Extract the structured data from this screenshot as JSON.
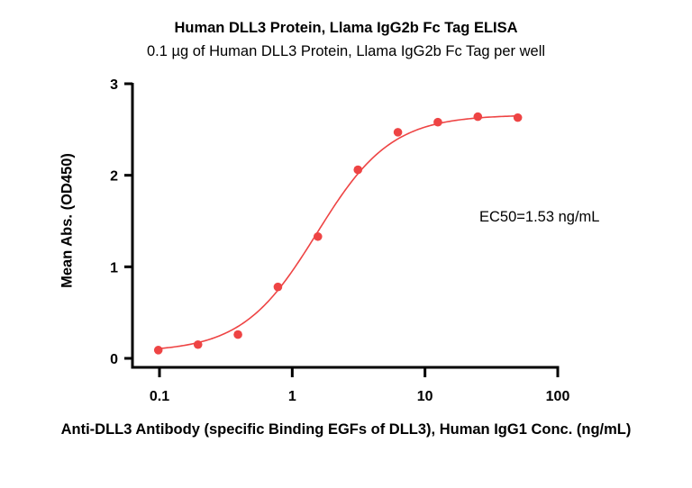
{
  "chart_data": {
    "type": "scatter",
    "title": "Human DLL3 Protein, Llama IgG2b Fc Tag ELISA",
    "subtitle": "0.1 µg of Human DLL3 Protein, Llama IgG2b Fc Tag per well",
    "xlabel": "Anti-DLL3 Antibody (specific Binding EGFs of DLL3), Human IgG1 Conc. (ng/mL)",
    "ylabel": "Mean Abs. (OD450)",
    "xscale": "log",
    "xlim": [
      0.1,
      100
    ],
    "ylim": [
      0,
      3
    ],
    "xticks": [
      "0.1",
      "1",
      "10",
      "100"
    ],
    "yticks": [
      "0",
      "1",
      "2",
      "3"
    ],
    "grid": false,
    "legend": null,
    "annotations": [
      "EC50=1.53 ng/mL"
    ],
    "series": [
      {
        "name": "Anti-DLL3 Antibody, Human IgG1",
        "color": "#ee4444",
        "fit": "4PL sigmoidal curve",
        "x": [
          0.098,
          0.195,
          0.39,
          0.78,
          1.56,
          3.125,
          6.25,
          12.5,
          25,
          50
        ],
        "y": [
          0.09,
          0.15,
          0.26,
          0.78,
          1.33,
          2.06,
          2.47,
          2.58,
          2.64,
          2.63
        ]
      }
    ],
    "fit_params": {
      "bottom": 0.07,
      "top": 2.66,
      "ec50": 1.53,
      "hill": 1.55
    }
  },
  "labels": {
    "title": "Human DLL3 Protein, Llama IgG2b Fc Tag ELISA",
    "subtitle": "0.1 µg of Human DLL3 Protein, Llama IgG2b Fc Tag per well",
    "xlabel": "Anti-DLL3 Antibody (specific Binding EGFs of DLL3), Human IgG1 Conc. (ng/mL)",
    "ylabel": "Mean Abs. (OD450)",
    "ec50": "EC50=1.53 ng/mL"
  }
}
